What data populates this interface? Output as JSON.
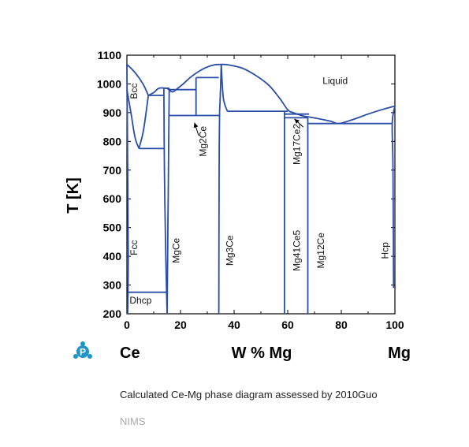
{
  "colors": {
    "line": "#2a4da8",
    "axis": "#000000",
    "logo": "#1e96c8"
  },
  "chart_data": {
    "type": "phase-diagram",
    "xlim": [
      0,
      100
    ],
    "ylim": [
      200,
      1100
    ],
    "x_ticks": [
      "0",
      "20",
      "40",
      "60",
      "80",
      "100"
    ],
    "y_ticks": [
      "200",
      "300",
      "400",
      "500",
      "600",
      "700",
      "800",
      "900",
      "1000",
      "1100"
    ],
    "ylabel": "T [K]",
    "xlabel": "W % Mg",
    "x_left_label": "Ce",
    "x_right_label": "Mg",
    "phase_labels": [
      {
        "id": "liquid",
        "text": "Liquid",
        "x": 73,
        "y": 1000,
        "rotate": false
      },
      {
        "id": "bcc",
        "text": "Bcc",
        "x": 3.8,
        "y": 975,
        "rotate": true
      },
      {
        "id": "fcc",
        "text": "Fcc",
        "x": 3.8,
        "y": 430,
        "rotate": true
      },
      {
        "id": "dhcp",
        "text": "Dhcp",
        "x": 1,
        "y": 235,
        "rotate": false
      },
      {
        "id": "mgce",
        "text": "MgCe",
        "x": 19.5,
        "y": 420,
        "rotate": true
      },
      {
        "id": "mg2ce",
        "text": "Mg2Ce",
        "x": 29.5,
        "y": 800,
        "rotate": true
      },
      {
        "id": "mg3ce",
        "text": "Mg3Ce",
        "x": 39.5,
        "y": 420,
        "rotate": true
      },
      {
        "id": "mg17ce2",
        "text": "Mg17Ce2",
        "x": 64.5,
        "y": 790,
        "rotate": true
      },
      {
        "id": "mg41ce5",
        "text": "Mg41Ce5",
        "x": 64.5,
        "y": 420,
        "rotate": true
      },
      {
        "id": "mg12ce",
        "text": "Mg12Ce",
        "x": 73.5,
        "y": 420,
        "rotate": true
      },
      {
        "id": "hcp",
        "text": "Hcp",
        "x": 97.5,
        "y": 420,
        "rotate": true
      }
    ],
    "curves": [
      [
        [
          0,
          1068
        ],
        [
          3,
          1040
        ],
        [
          6,
          1000
        ],
        [
          8,
          960
        ]
      ],
      [
        [
          8,
          960
        ],
        [
          10,
          970
        ],
        [
          12,
          985
        ],
        [
          15,
          985
        ]
      ],
      [
        [
          15,
          985
        ],
        [
          17,
          972
        ],
        [
          19,
          985
        ],
        [
          21,
          1000
        ],
        [
          24,
          1025
        ],
        [
          28,
          1050
        ],
        [
          32,
          1065
        ],
        [
          35,
          1068
        ],
        [
          38,
          1066
        ],
        [
          43,
          1055
        ],
        [
          48,
          1030
        ],
        [
          53,
          995
        ],
        [
          57,
          950
        ],
        [
          60,
          910
        ],
        [
          62,
          900
        ],
        [
          66,
          888
        ],
        [
          68,
          885
        ],
        [
          72,
          878
        ],
        [
          76,
          870
        ],
        [
          79,
          862
        ],
        [
          84,
          875
        ],
        [
          90,
          895
        ],
        [
          95,
          910
        ],
        [
          100,
          923
        ]
      ],
      [
        [
          0,
          980
        ],
        [
          1.5,
          900
        ],
        [
          3,
          815
        ],
        [
          4.5,
          775
        ]
      ],
      [
        [
          4.5,
          775
        ],
        [
          6.2,
          840
        ],
        [
          8,
          960
        ]
      ],
      [
        [
          0,
          1068
        ],
        [
          0.3,
          700
        ],
        [
          0.5,
          400
        ],
        [
          0.3,
          200
        ]
      ],
      [
        [
          13.8,
          985
        ],
        [
          14,
          700
        ],
        [
          14.5,
          400
        ],
        [
          15,
          200
        ]
      ],
      [
        [
          15,
          200
        ],
        [
          15.3,
          500
        ],
        [
          15.6,
          800
        ],
        [
          15.8,
          985
        ]
      ],
      [
        [
          34.3,
          200
        ],
        [
          34.4,
          700
        ],
        [
          34.6,
          905
        ]
      ],
      [
        [
          34.6,
          905
        ],
        [
          35,
          1000
        ],
        [
          35.2,
          1068
        ]
      ],
      [
        [
          35.2,
          1068
        ],
        [
          36,
          950
        ],
        [
          37.5,
          905
        ]
      ],
      [
        [
          99.5,
          290
        ],
        [
          99.3,
          700
        ],
        [
          99,
          862
        ],
        [
          100,
          923
        ]
      ]
    ],
    "segments": [
      [
        [
          4.5,
          775
        ],
        [
          14,
          775
        ]
      ],
      [
        [
          8,
          960
        ],
        [
          14,
          960
        ]
      ],
      [
        [
          13.8,
          985
        ],
        [
          15.8,
          985
        ]
      ],
      [
        [
          0.3,
          275
        ],
        [
          14.8,
          275
        ]
      ],
      [
        [
          16,
          980
        ],
        [
          25.8,
          980
        ]
      ],
      [
        [
          25.8,
          1022
        ],
        [
          34.3,
          1022
        ]
      ],
      [
        [
          15.8,
          890
        ],
        [
          34.6,
          890
        ]
      ],
      [
        [
          25.8,
          1022
        ],
        [
          25.8,
          890
        ]
      ],
      [
        [
          37.5,
          905
        ],
        [
          60,
          905
        ]
      ],
      [
        [
          58.8,
          895
        ],
        [
          68,
          895
        ]
      ],
      [
        [
          58.8,
          882
        ],
        [
          67.5,
          882
        ]
      ],
      [
        [
          58.8,
          905
        ],
        [
          58.8,
          200
        ]
      ],
      [
        [
          67.5,
          882
        ],
        [
          67.5,
          200
        ]
      ],
      [
        [
          67.5,
          862
        ],
        [
          99,
          862
        ]
      ]
    ],
    "arrows": [
      {
        "from": [
          26.8,
          820
        ],
        "to": [
          25.2,
          865
        ]
      },
      {
        "from": [
          65.8,
          850
        ],
        "to": [
          62.5,
          878
        ]
      }
    ]
  },
  "footer": {
    "caption": "Calculated Ce-Mg phase diagram assessed by 2010Guo",
    "source": "NIMS"
  },
  "logo_icon": "p-molecule-logo-icon"
}
